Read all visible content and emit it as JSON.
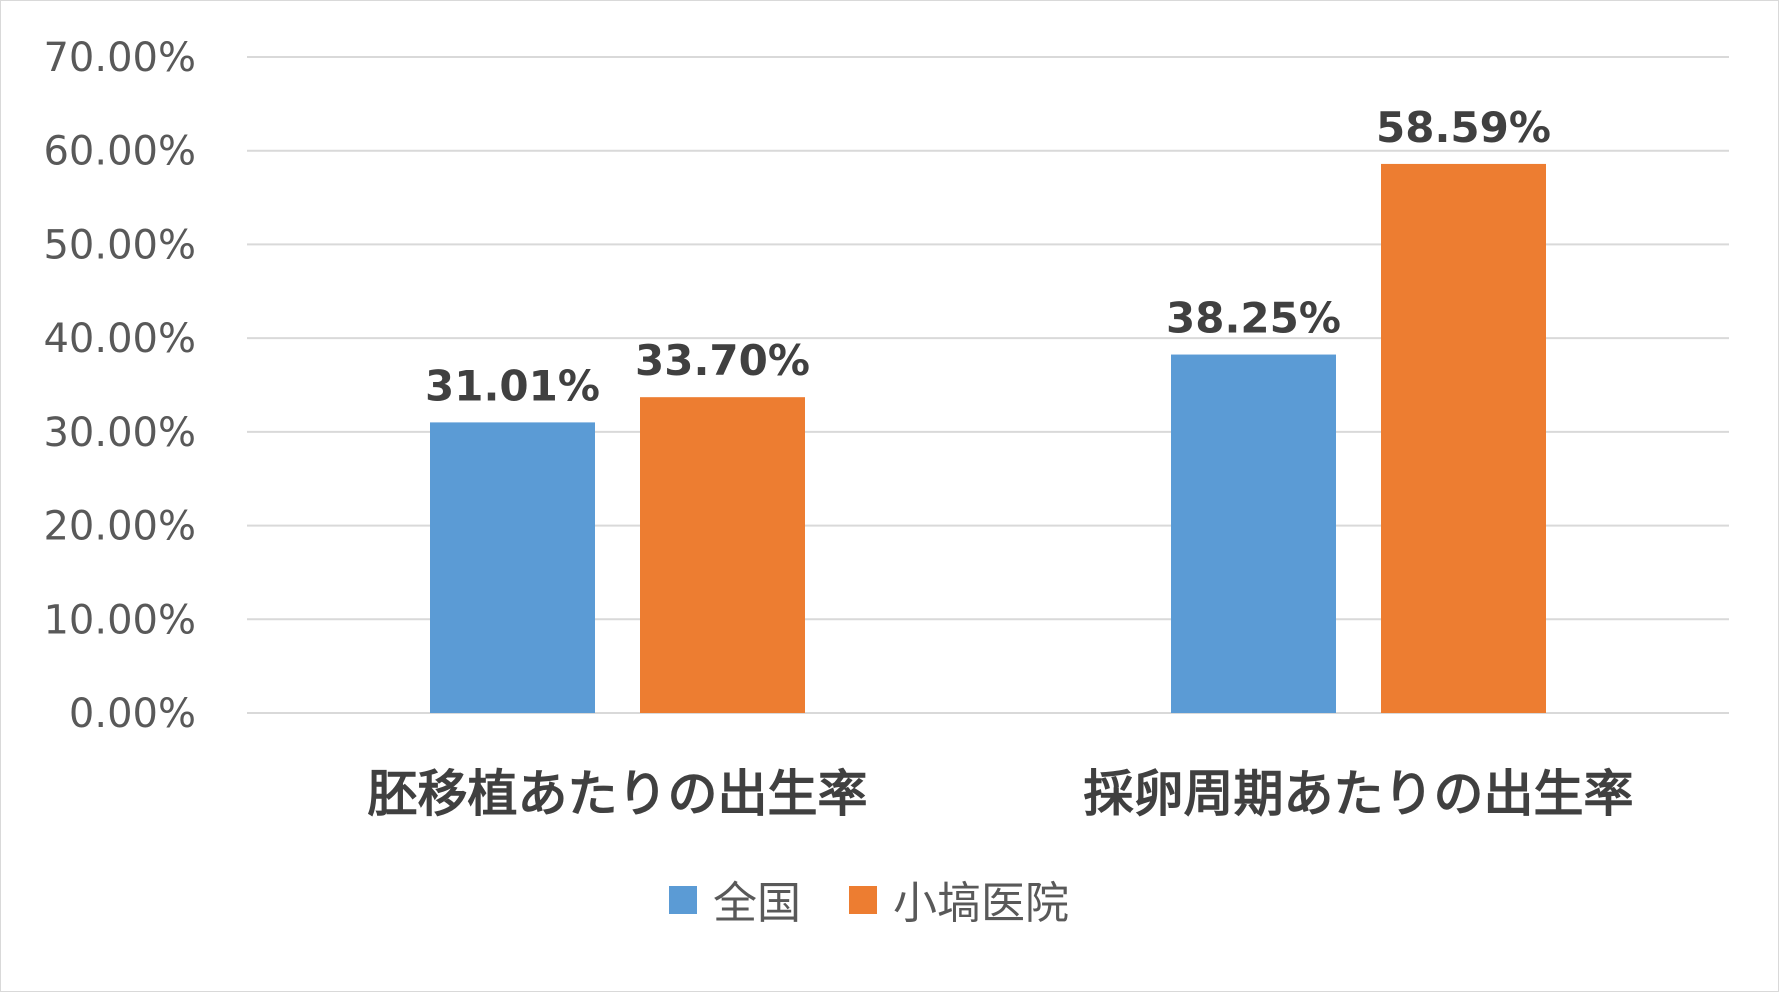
{
  "chart_data": {
    "type": "bar",
    "categories": [
      "胚移植あたりの出生率",
      "採卵周期あたりの出生率"
    ],
    "series": [
      {
        "name": "全国",
        "values": [
          31.01,
          38.25
        ],
        "labels": [
          "31.01%",
          "38.25%"
        ],
        "color": "#5b9bd5"
      },
      {
        "name": "小塙医院",
        "values": [
          33.7,
          58.59
        ],
        "labels": [
          "33.70%",
          "58.59%"
        ],
        "color": "#ed7d31"
      }
    ],
    "ylim": [
      0,
      70
    ],
    "yticks": [
      0,
      10,
      20,
      30,
      40,
      50,
      60,
      70
    ],
    "ytick_labels": [
      "0.00%",
      "10.00%",
      "20.00%",
      "30.00%",
      "40.00%",
      "50.00%",
      "60.00%",
      "70.00%"
    ],
    "grid": true,
    "legend_position": "bottom",
    "title": "",
    "xlabel": "",
    "ylabel": ""
  }
}
